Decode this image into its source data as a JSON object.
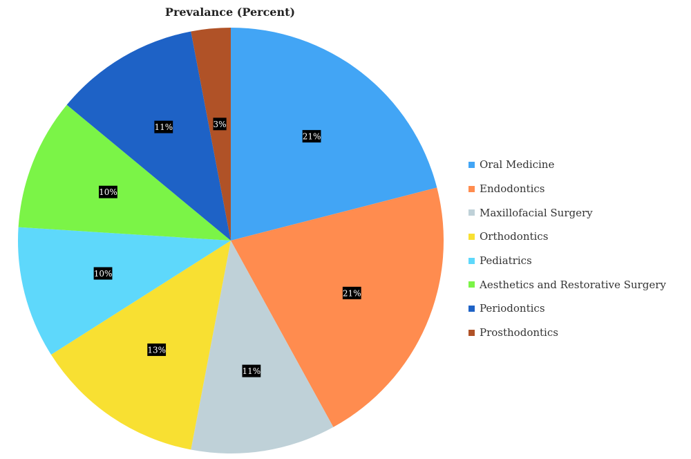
{
  "chart_data": {
    "type": "pie",
    "title": "Prevalance (Percent)",
    "categories": [
      "Oral Medicine",
      "Endodontics",
      "Maxillofacial Surgery",
      "Orthodontics",
      "Pediatrics",
      "Aesthetics and Restorative Surgery",
      "Periodontics",
      "Prosthodontics"
    ],
    "values": [
      21,
      21,
      11,
      13,
      10,
      10,
      11,
      3
    ],
    "labels": [
      "21%",
      "21%",
      "11%",
      "13%",
      "10%",
      "10%",
      "11%",
      "3%"
    ],
    "colors": [
      "#42a5f5",
      "#ff8c4f",
      "#bfd1d8",
      "#f8e032",
      "#5ed8fb",
      "#7bf447",
      "#1e62c6",
      "#b05227"
    ],
    "legend_position": "right"
  }
}
